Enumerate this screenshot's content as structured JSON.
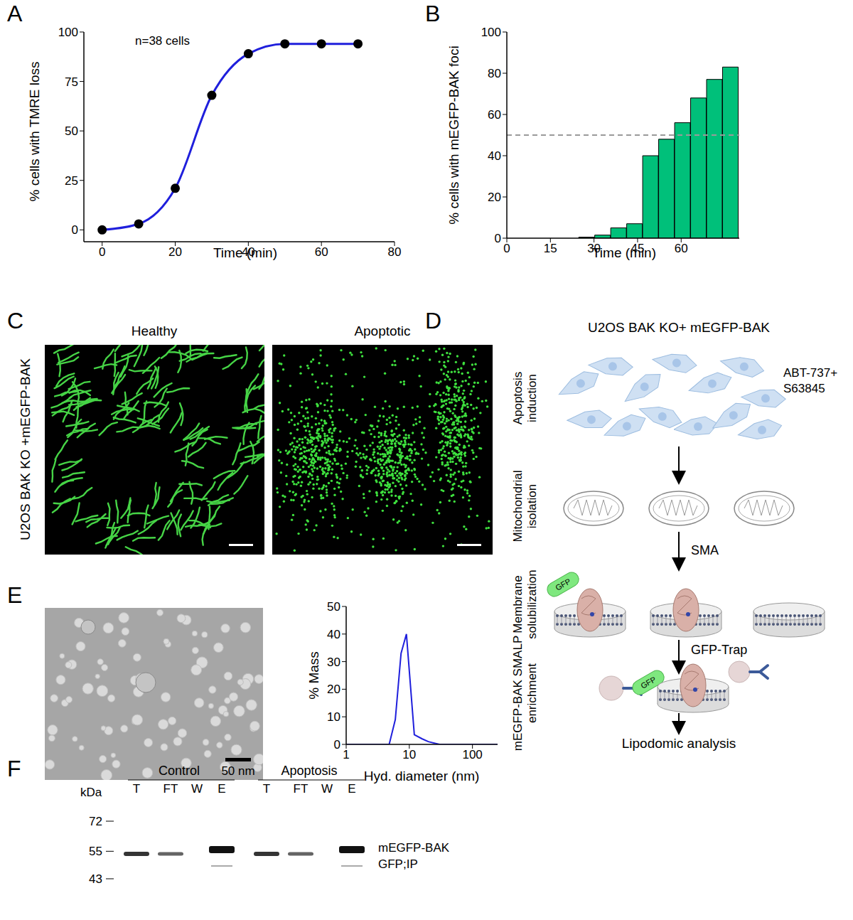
{
  "chart_data": [
    {
      "panel": "A",
      "type": "line",
      "x_label": "Time (min)",
      "y_label": "% cells with TMRE loss",
      "annotations": [
        "n=38 cells"
      ],
      "x": [
        0,
        10,
        20,
        30,
        40,
        50,
        60,
        70
      ],
      "values": [
        0,
        3,
        21,
        68,
        89,
        94,
        94,
        94
      ],
      "color": "#1f1fdc",
      "marker": "circle",
      "xlim": [
        -5,
        80
      ],
      "xticks": [
        0,
        20,
        40,
        60,
        80
      ],
      "ylim": [
        -6,
        100
      ],
      "yticks": [
        0,
        25,
        50,
        75,
        100
      ]
    },
    {
      "panel": "B",
      "type": "bar",
      "x_label": "Time (min)",
      "y_label": "% cells with mEGFP-BAK foci",
      "x": [
        27.5,
        33,
        38.5,
        44,
        49.5,
        55,
        60.5,
        66,
        71.5,
        77
      ],
      "values": [
        0.5,
        1.5,
        5,
        7,
        40,
        48,
        56,
        68,
        77,
        83
      ],
      "color": "#00c07a",
      "xlim": [
        0,
        80
      ],
      "xticks": [
        0,
        15,
        30,
        45,
        60
      ],
      "ylim": [
        0,
        100
      ],
      "yticks": [
        0,
        20,
        40,
        60,
        80,
        100
      ],
      "reference_line": {
        "y": 50,
        "line_style": "dashed"
      }
    },
    {
      "panel": "E",
      "type": "line",
      "x_label": "Hyd. diameter (nm)",
      "y_label": "% Mass",
      "x": [
        1,
        2,
        3,
        4.8,
        6,
        7.4,
        9,
        12,
        16,
        20,
        30,
        50,
        100,
        250
      ],
      "values": [
        0,
        0,
        0,
        0,
        9,
        33,
        40,
        3.5,
        2,
        1,
        0,
        0,
        0,
        0
      ],
      "color": "#1f1fdc",
      "log": "x",
      "xlim": [
        1,
        250
      ],
      "xticks": [
        1,
        10,
        100
      ],
      "ylim": [
        0,
        50
      ],
      "yticks": [
        0,
        10,
        20,
        30,
        40,
        50
      ]
    }
  ],
  "figure": {
    "C": {
      "panel": "C",
      "row_label": "U2OS BAK KO +mEGFP-BAK",
      "image_titles": [
        "Healthy",
        "Apoptotic"
      ]
    },
    "D": {
      "panel": "D",
      "title": "U2OS BAK KO+ mEGFP-BAK",
      "treatment": "ABT-737+ S63845",
      "steps": [
        "Apoptosis induction",
        "Mitochondrial isolation",
        "Membrane solubilization",
        "mEGFP-BAK SMALP enrichment"
      ],
      "reagents": [
        "SMA",
        "GFP-Trap"
      ],
      "tag": "GFP",
      "result": "Lipodomic analysis"
    },
    "E": {
      "image_scale_bar": "50 nm"
    },
    "F": {
      "panel": "F",
      "unit": "kDa",
      "markers": [
        72,
        55,
        43
      ],
      "groups": [
        "Control",
        "Apoptosis"
      ],
      "lanes": [
        "T",
        "FT",
        "W",
        "E"
      ],
      "band_labels": [
        "mEGFP-BAK",
        "GFP;IP"
      ]
    }
  }
}
